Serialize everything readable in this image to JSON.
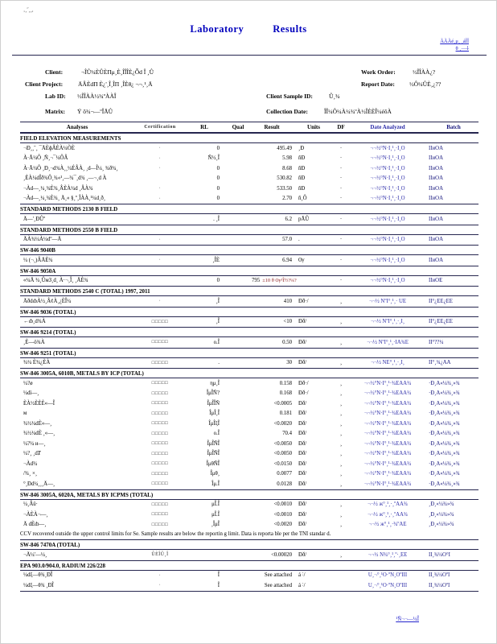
{
  "corner_mark": "‚¸˝¸¸,",
  "header": {
    "title_word1": "Laboratory",
    "title_word2": "Results",
    "link1": "ÃÃÃé¸μ¸ ¸áÎÎ",
    "link2": "θ ¸—⸸"
  },
  "meta": {
    "client_label": "Client:",
    "client_value": "¬ÎÛ¼ÈÛÈΠμ¸È¸ÎÎÎÈ¿Ȭd  Î  ¸Û",
    "work_order_label": "Work Order:",
    "work_order_value": "½ÎÎÀÀ¿?",
    "project_label": "Client Project:",
    "project_value": "ÄÂÈdΠ È¿'¸Î¸ÎΠ ¸ÎÈθ¿ ¬¬¸¹¸Ä",
    "report_date_label": "Report Date:",
    "report_date_value": "½Ô¼ÛÈ¸¿??",
    "lab_id_label": "Lab ID:",
    "lab_id_value": "½ÎÎÀÀ½¾ºÀÀÎ",
    "sample_id_label": "Client Sample ID:",
    "sample_id_value": "Û¸¾",
    "matrix_label": "Matrix:",
    "matrix_value": "Ÿ  ô¾¬—ºÎÃÛ",
    "collection_label": "Collection Date:",
    "collection_value": "ÎÎ¼Ô¼À¼¾ºÀ½ÎÈÈÎ¼éôÀ"
  },
  "table": {
    "columns": [
      "Analyses",
      "Certification",
      "RL",
      "Qual",
      "Result",
      "Units",
      "DF",
      "Date Analyzed",
      "Batch"
    ],
    "sections": [
      {
        "title": "FIELD ELEVATION MEASUREMENTS",
        "rows": [
          {
            "a": "¬Ð¸¸˝¸ ¯ÄÈɸÂÈÀ¼ÕÈ",
            "c": "·",
            "rl": "0",
            "q": "",
            "res": "495.49",
            "u": "¸Ð",
            "df": "·",
            "d": "¬¬½°Ñ·Î¸¹¸·Î¸Ô",
            "b": "ÎÎиÔÀ"
          },
          {
            "a": "À·Ã¼Ô ¸Ñ¸¬¯¼ÔÂ",
            "c": "·",
            "rl": "Ñ½¸Î",
            "q": "",
            "res": "5.98",
            "u": "ñÐ",
            "df": "·",
            "d": "¬¬½°Ñ·Î¸¹¸·Î¸Ô",
            "b": "ÎÎиÔÀ"
          },
          {
            "a": "À·Ã¼Ô ¸Ð¸¬d¾À¸¸¼ÉÂÀ¸ ¸d—Î¼¸ ¾ð¾¸",
            "c": "·",
            "rl": "0",
            "q": "",
            "res": "8.68",
            "u": "ñÐ",
            "df": "·",
            "d": "¬¬½°Ñ·Î¸¹¸·Î¸Ô",
            "b": "ÎÎиÔÀ"
          },
          {
            "a": "¸ÈÀ¼dÎð¾Ô¸¾«¹¸—¾¯¸d¾  ¸—¬¸d À",
            "c": "",
            "rl": "0",
            "q": "",
            "res": "530.82",
            "u": "ñÐ",
            "df": "·",
            "d": "¬¬½°Ñ·Î¸¹¸·Î¸Ô",
            "b": "ÎÎиÔÀ"
          },
          {
            "a": "¬Àd—¸¼¸¾È¾¸ÂÈÀ¼d  ¸ÂÀ¾",
            "c": "·",
            "rl": "0",
            "q": "",
            "res": "533.50",
            "u": "ñÐ",
            "df": "·",
            "d": "¬¬½°Ñ·Î¸¹¸·Î¸Ô",
            "b": "ÎÎиÔÀ"
          },
          {
            "a": "¬Àd—¸¼¸¾È¾¸ Ä¸«  §¸º¸ÎÀÀ¸¹¼d¸ð¸",
            "c": "·",
            "rl": "0",
            "q": "",
            "res": "2.70",
            "u": "ñ¸Ô",
            "df": "·",
            "d": "¬¬½°Ñ·Î¸¹¸·Î¸Ô",
            "b": "ÎÎиÔÀ"
          }
        ]
      },
      {
        "title": "STANDARD METHODS 2130 B FIELD",
        "rows": [
          {
            "a": "Ä—'¸ÐÛº",
            "c": "",
            "rl": ". ¸Î",
            "q": "",
            "res": "6.2",
            "u": "pÃÛ",
            "df": "·",
            "d": "¬¬½°Ñ·Î¸¹¸·Î¸Ô",
            "b": "ÎÎиÔÀ"
          }
        ]
      },
      {
        "title": "STANDARD METHODS 2550 B FIELD",
        "rows": [
          {
            "a": "ÄÀ¾¼À¼dº—Ä",
            "c": "·",
            "rl": "",
            "q": "",
            "res": "57.0",
            "u": ".",
            "df": "·",
            "d": "¬¬½°Ñ·Î¸¹¸·Î¸Ô",
            "b": "ÎÎиÔÀ"
          }
        ]
      },
      {
        "title": "SW-846 9040B",
        "rows": [
          {
            "a": "¼ (¬¸)ÂÄÈ¾",
            "c": "·",
            "rl": "¸ÎÈ",
            "q": "",
            "res": "6.94",
            "u": "Ѹ",
            "df": "·",
            "d": "¬¬½°Ñ·Î¸¹¸·Î¸Ô",
            "b": "ÎÎиÔÀ"
          }
        ]
      },
      {
        "title": "SW-846 9050A",
        "rows": [
          {
            "a": "«¼Ä ¾¸ÛмЗ¸d¸  À·¬¸Î¸  ¸ÄÈ¾",
            "c": "",
            "rl": "0",
            "q": "",
            "res": "795",
            "ex": "±10 θ Ѹ¹Î½?¼?",
            "u": "",
            "df": "·",
            "d": "¬¬½°Ñ·Î¸¹¸·Î¸Ô",
            "b": "ÎÎиÔÈ"
          }
        ]
      },
      {
        "title": "STANDARD METHODS 2540 C (TOTAL) 1997, 2011",
        "rows": [
          {
            "a": "ÄðdȸÀ½¸ÂȼÀ¸¿ÈÎ¼",
            "c": "·",
            "rl": "¸Î",
            "q": "",
            "res": "410",
            "u": "Ðð·/",
            "df": "¸",
            "d": "¬¬½ ÑºÎ°¸¹¸· ÛÈ",
            "b": "ÎÎ°¿ÈÈ¿ÈÈ"
          }
        ]
      },
      {
        "title": "SW-846 9036 (TOTAL)",
        "rows": [
          {
            "a": "←ȸ¸d¾À",
            "c": "□□□□□",
            "rl": "¸Î",
            "q": "",
            "res": "<10",
            "u": "Ðð/",
            "df": "¸",
            "d": "¬¬½ ÑºÎ°¸¹¸·¸Î¸",
            "b": "ÎÎ°¿ÈÈ¿ÈÈ"
          }
        ]
      },
      {
        "title": "SW-846 9214 (TOTAL)",
        "rows": [
          {
            "a": "¸È—ö¾À",
            "c": "□□□□□",
            "rl": "ο.Î",
            "q": "",
            "res": "0.50",
            "u": "Ðð/",
            "df": "¸",
            "d": "¬¬½ ÑºÎ°¸¹¸·ÎÄ¾È",
            "b": "ÎÎ°??¼"
          }
        ]
      },
      {
        "title": "SW-846 9251 (TOTAL)",
        "rows": [
          {
            "a": "¾¼ È¾¿ÈÀ",
            "c": "□□□□□",
            "rl": ".",
            "q": "",
            "res": "30",
            "u": "Ðð/",
            "df": "¸",
            "d": "¬¬½ ÑÈ°¸¹¸·¸Î¸",
            "b": "ÎÎ°¸¾¿ÀÀ"
          }
        ]
      },
      {
        "title": "SW-846 3005A, 6010B, METALS BY ICP (TOTAL)",
        "rows": [
          {
            "a": "¼?ø",
            "c": "□□□□□",
            "rl": "ημ¸Î",
            "q": "",
            "res": "0.158",
            "u": "Ðð·/",
            "df": "¸",
            "d": "¬¬½°Ñ·Î°¸¹·¾ÈÄÀ¾",
            "b": "·Ð¸À«¼¾¸»¾"
          },
          {
            "a": "¼dì—¸",
            "c": "□□□□□",
            "rl": "ÎμÎÑ?",
            "q": "",
            "res": "0.168",
            "u": "Ðð·/",
            "df": "¸",
            "d": "¬¬½°Ñ·Î°¸¹·¾ÈÄÀ¾",
            "b": "·Ð¸À«¼¾¸»¾"
          },
          {
            "a": "ÈÀ½ÈÈÈ«—Î",
            "c": "□□□□□",
            "rl": "ÎμÎÎÑ",
            "q": "",
            "res": "<0.0005",
            "u": "Ðð/",
            "df": "¸",
            "d": "¬¬½°Ñ·Î°¸¹·¾ÈÄÀ¾",
            "b": "·Ð¸À«¼¾¸»¾"
          },
          {
            "a": "м",
            "c": "□□□□□",
            "rl": "ÎμÎ¸Î",
            "q": "",
            "res": "0.181",
            "u": "Ðð/",
            "df": "¸",
            "d": "¬¬½°Ñ·Î°¸¹·¾ÈÄÀ¾",
            "b": "·Ð¸À«¼¾¸»¾"
          },
          {
            "a": "¾½¼dÈ«—¸",
            "c": "□□□□□",
            "rl": "ÎμÎξÎ",
            "q": "",
            "res": "<0.0020",
            "u": "Ðð/",
            "df": "¸",
            "d": "¬¬½°Ñ·Î°¸¹·¾ÈÄÀ¾",
            "b": "·Ð¸À«¼¾¸»¾"
          },
          {
            "a": "¾½¼dÈ ¸«—¸",
            "c": "□□□□□",
            "rl": "ο.Î",
            "q": "",
            "res": "70.4",
            "u": "Ðð/",
            "df": "¸",
            "d": "¬¬½°Ñ·Î°¸¹·¾ÈÄÀ¾",
            "b": "·Ð¸À«¼¾¸»¾"
          },
          {
            "a": "¼?¼ и—¸",
            "c": "□□□□□",
            "rl": "ÎμÎÑÎ",
            "q": "",
            "res": "<0.0050",
            "u": "Ðð/",
            "df": "¸",
            "d": "¬¬½°Ñ·Î°¸¹·¾ÈÄÀ¾",
            "b": "·Ð¸À«¼¾¸»¾"
          },
          {
            "a": "¼?¸ ¸dȾ",
            "c": "□□□□□",
            "rl": "ÎμÎÑÎ",
            "q": "",
            "res": "<0.0050",
            "u": "Ðð/",
            "df": "¸",
            "d": "¬¬½°Ñ·Î°¸¹·¾ÈÄÀ¾",
            "b": "·Ð¸À«¼¾¸»¾"
          },
          {
            "a": "¬Àd¾",
            "c": "□□□□□",
            "rl": "ÎμθÑÎ",
            "q": "",
            "res": "<0.0150",
            "u": "Ðð/",
            "df": "¸",
            "d": "¬¬½°Ñ·Î°¸¹·¾ÈÄÀ¾",
            "b": "·Ð¸À«¼¾¸»¾"
          },
          {
            "a": "/¾¸  ×¸",
            "c": "□□□□□",
            "rl": "Îμθ¸",
            "q": "",
            "res": "0.0077",
            "u": "Ðð/",
            "df": "¸",
            "d": "¬¬½°Ñ·Î°¸¹·¾ÈÄÀ¾",
            "b": "·Ð¸À«¼¾¸»¾"
          },
          {
            "a": "°¸Ðd¼¸¸¸Ä—¸",
            "c": "□□□□□",
            "rl": "Îμ.Î",
            "q": "",
            "res": "0.0128",
            "u": "Ðð/",
            "df": "¸",
            "d": "¬¬½°Ñ·Î°¸¹·¾ÈÄÀ¾",
            "b": "·Ð¸À«¼¾¸»¾"
          }
        ]
      },
      {
        "title": "SW-846 3005A, 6020A, METALS BY ICPMS (TOTAL)",
        "rows": [
          {
            "a": "¼¸Âü·",
            "c": "□□□□□",
            "rl": "μÎ.Î",
            "q": "",
            "res": "<0.0010",
            "u": "Ðð/",
            "df": "¸",
            "d": "¬¬½ ж°¸¹¸·¸ºÄÀ¾",
            "b": "¸Ð¸«¼¾»¾"
          },
          {
            "a": "¬ÀÈÀ¬—¸",
            "c": "□□□□□",
            "rl": "μÎ.Î",
            "q": "",
            "res": "<0.0010",
            "u": "Ðð/",
            "df": "¸",
            "d": "¬¬½ ж°¸¹¸·¸ºÄÀ¾",
            "b": "¸Ð¸«¼¾»¾"
          },
          {
            "a": "Ä dÈȸ—¸",
            "c": "□□□□□",
            "rl": "¸ÎμÎ",
            "q": "",
            "res": "<0.0020",
            "u": "Ðð/",
            "df": "¸",
            "d": "¬¬½ ж°¸¹¸·¾ºÄÈ",
            "b": "¸Ð¸«¼¾»¾"
          }
        ],
        "note": "CCV recovered outside the upper control limits for Se. Sample results are below the reportin g limit. Data is reporta ble per the TNI standar d."
      },
      {
        "title": "SW-846 7470A (TOTAL)",
        "rows": [
          {
            "a": "¬Ä¼'—¼¸",
            "c": "ÛÈÎÛ¸Î",
            "rl": "",
            "q": "",
            "res": "<0.00020",
            "u": "Ðð/",
            "df": "¸",
            "d": "¬¬½ Ñ¾°¸¹¸º·¸ÈÈ",
            "b": "ÎÎ¸¾¼Ô°Î"
          }
        ]
      },
      {
        "title": "EPA 903.0/904.0, RADIUM 226/228",
        "rows": [
          {
            "a": "¼dξ—θ¾¸ÐÎ",
            "c": "·",
            "rl": "Î",
            "q": "",
            "res": "See attached",
            "u": "á ˸/",
            "df": "",
            "d": "Û¸¬°¸¹Ô·ºÑ¸ÔºÎÎÎ",
            "b": "ÎÎ¸¾¼ÔºÎ"
          },
          {
            "a": "¼dξ—θ¾ ¸ÐÎ",
            "c": "·",
            "rl": "Î",
            "q": "",
            "res": "See attached",
            "u": "á ˸/",
            "df": "",
            "d": "Û¸¬°¸¹Ô·ºÑ¸ÔºÎÎÎ",
            "b": "ÎÎ¸¾¼ÔºÎ"
          }
        ]
      }
    ]
  },
  "footer": {
    "text": "¹Ñ¬¬—¼Î"
  }
}
